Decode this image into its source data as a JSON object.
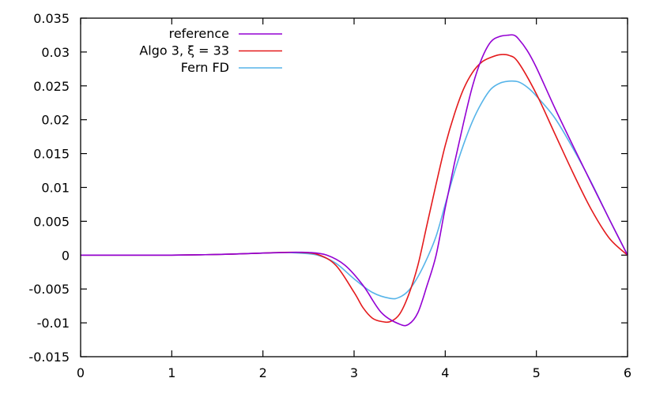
{
  "chart_data": {
    "type": "line",
    "title": "",
    "xlabel": "",
    "ylabel": "",
    "xlim": [
      0,
      6
    ],
    "ylim": [
      -0.015,
      0.035
    ],
    "x_ticks": [
      0,
      1,
      2,
      3,
      4,
      5,
      6
    ],
    "x_tick_labels": [
      "0",
      "1",
      "2",
      "3",
      "4",
      "5",
      "6"
    ],
    "y_ticks": [
      -0.015,
      -0.01,
      -0.005,
      0,
      0.005,
      0.01,
      0.015,
      0.02,
      0.025,
      0.03,
      0.035
    ],
    "y_tick_labels": [
      "-0.015",
      "-0.01",
      "-0.005",
      "0",
      "0.005",
      "0.01",
      "0.015",
      "0.02",
      "0.025",
      "0.03",
      "0.035"
    ],
    "grid": false,
    "legend_position": "top-left",
    "series": [
      {
        "name": "reference",
        "color": "#9400d3",
        "x": [
          0,
          0.5,
          1,
          1.5,
          2,
          2.3,
          2.5,
          2.7,
          2.9,
          3.1,
          3.3,
          3.5,
          3.6,
          3.7,
          3.8,
          3.9,
          4.0,
          4.1,
          4.2,
          4.3,
          4.4,
          4.5,
          4.6,
          4.7,
          4.75,
          4.8,
          4.9,
          5.0,
          5.2,
          5.4,
          5.6,
          5.8,
          6.0
        ],
        "y": [
          0,
          0,
          0,
          0.0001,
          0.0003,
          0.0004,
          0.0004,
          0.0,
          -0.0015,
          -0.0045,
          -0.0085,
          -0.0102,
          -0.0102,
          -0.0085,
          -0.0045,
          0.0,
          0.007,
          0.0135,
          0.0195,
          0.025,
          0.029,
          0.0315,
          0.0323,
          0.0325,
          0.0325,
          0.032,
          0.0302,
          0.0277,
          0.0218,
          0.0162,
          0.0107,
          0.0053,
          0.0
        ]
      },
      {
        "name": "Algo 3, ξ = 33",
        "color": "#e41a1c",
        "x": [
          0,
          0.5,
          1,
          1.5,
          2,
          2.2,
          2.4,
          2.6,
          2.8,
          3.0,
          3.1,
          3.2,
          3.3,
          3.4,
          3.5,
          3.6,
          3.7,
          3.8,
          3.9,
          4.0,
          4.1,
          4.2,
          4.3,
          4.4,
          4.5,
          4.6,
          4.7,
          4.8,
          5.0,
          5.2,
          5.4,
          5.6,
          5.8,
          6.0
        ],
        "y": [
          0,
          0,
          0,
          0.0001,
          0.0003,
          0.0004,
          0.0004,
          0.0001,
          -0.0015,
          -0.0055,
          -0.0078,
          -0.0093,
          -0.0098,
          -0.0098,
          -0.0087,
          -0.0058,
          -0.0015,
          0.0045,
          0.0105,
          0.0162,
          0.0208,
          0.0245,
          0.027,
          0.0285,
          0.0292,
          0.0296,
          0.0295,
          0.0285,
          0.0238,
          0.018,
          0.0122,
          0.0068,
          0.0025,
          0.0
        ]
      },
      {
        "name": "Fern FD",
        "color": "#56b4e9",
        "x": [
          0,
          0.5,
          1,
          1.5,
          2,
          2.2,
          2.4,
          2.6,
          2.8,
          3.0,
          3.2,
          3.4,
          3.5,
          3.6,
          3.7,
          3.8,
          3.9,
          4.0,
          4.1,
          4.2,
          4.3,
          4.4,
          4.5,
          4.6,
          4.7,
          4.8,
          4.9,
          5.0,
          5.2,
          5.4,
          5.6,
          5.8,
          6.0
        ],
        "y": [
          0,
          0,
          0,
          0.0001,
          0.0003,
          0.0004,
          0.0003,
          0.0,
          -0.0012,
          -0.0035,
          -0.0055,
          -0.0064,
          -0.0062,
          -0.0052,
          -0.0032,
          -0.0005,
          0.0028,
          0.0075,
          0.0122,
          0.0163,
          0.0198,
          0.0225,
          0.0245,
          0.0254,
          0.0257,
          0.0256,
          0.0248,
          0.0235,
          0.0203,
          0.0158,
          0.0108,
          0.0053,
          0.0
        ]
      }
    ]
  }
}
